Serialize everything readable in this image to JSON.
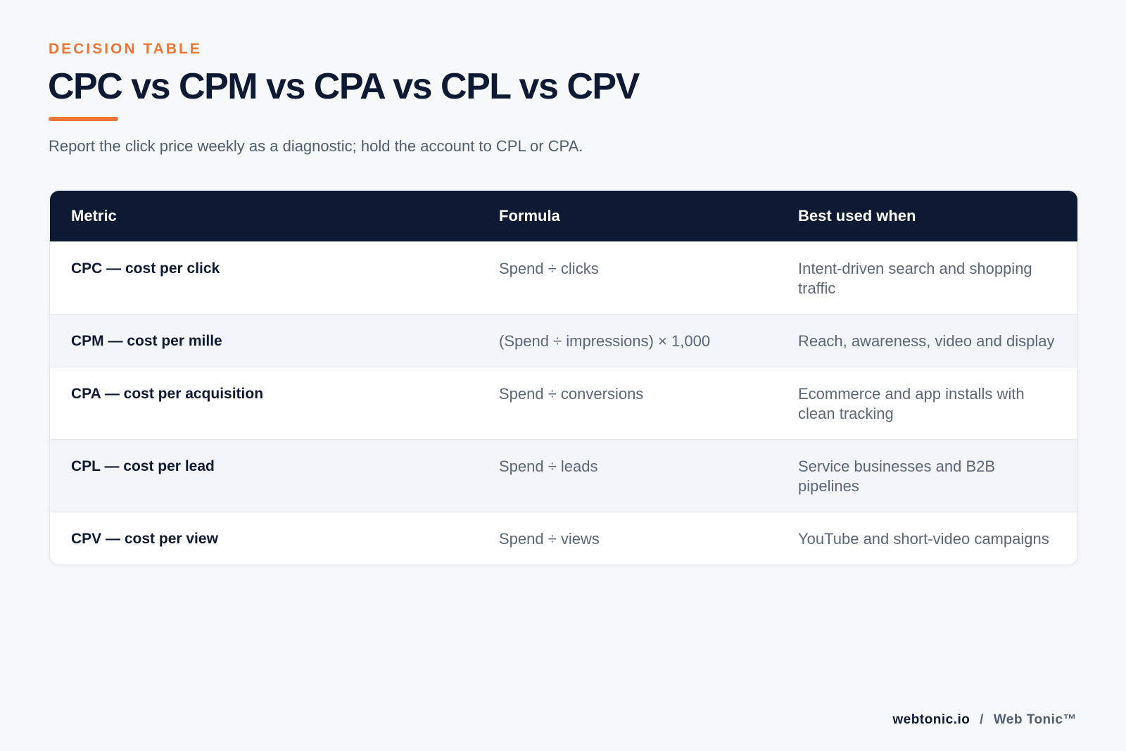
{
  "header": {
    "eyebrow": "DECISION TABLE",
    "title": "CPC vs CPM vs CPA vs CPL vs CPV",
    "subtitle": "Report the click price weekly as a diagnostic; hold the account to CPL or CPA."
  },
  "table": {
    "columns": [
      "Metric",
      "Formula",
      "Best used when"
    ],
    "rows": [
      {
        "metric": "CPC — cost per click",
        "formula": "Spend ÷ clicks",
        "best_used_when": "Intent-driven search and shopping traffic"
      },
      {
        "metric": "CPM — cost per mille",
        "formula": "(Spend ÷ impressions) × 1,000",
        "best_used_when": "Reach, awareness, video and display"
      },
      {
        "metric": "CPA — cost per acquisition",
        "formula": "Spend ÷ conversions",
        "best_used_when": "Ecommerce and app installs with clean tracking"
      },
      {
        "metric": "CPL — cost per lead",
        "formula": "Spend ÷ leads",
        "best_used_when": "Service businesses and B2B pipelines"
      },
      {
        "metric": "CPV — cost per view",
        "formula": "Spend ÷ views",
        "best_used_when": "YouTube and short-video campaigns"
      }
    ]
  },
  "footer": {
    "site": "webtonic.io",
    "separator": "/",
    "brand": "Web Tonic™"
  },
  "colors": {
    "accent": "#ee7637",
    "navy": "#0e1a33",
    "background": "#f6f8fa"
  }
}
